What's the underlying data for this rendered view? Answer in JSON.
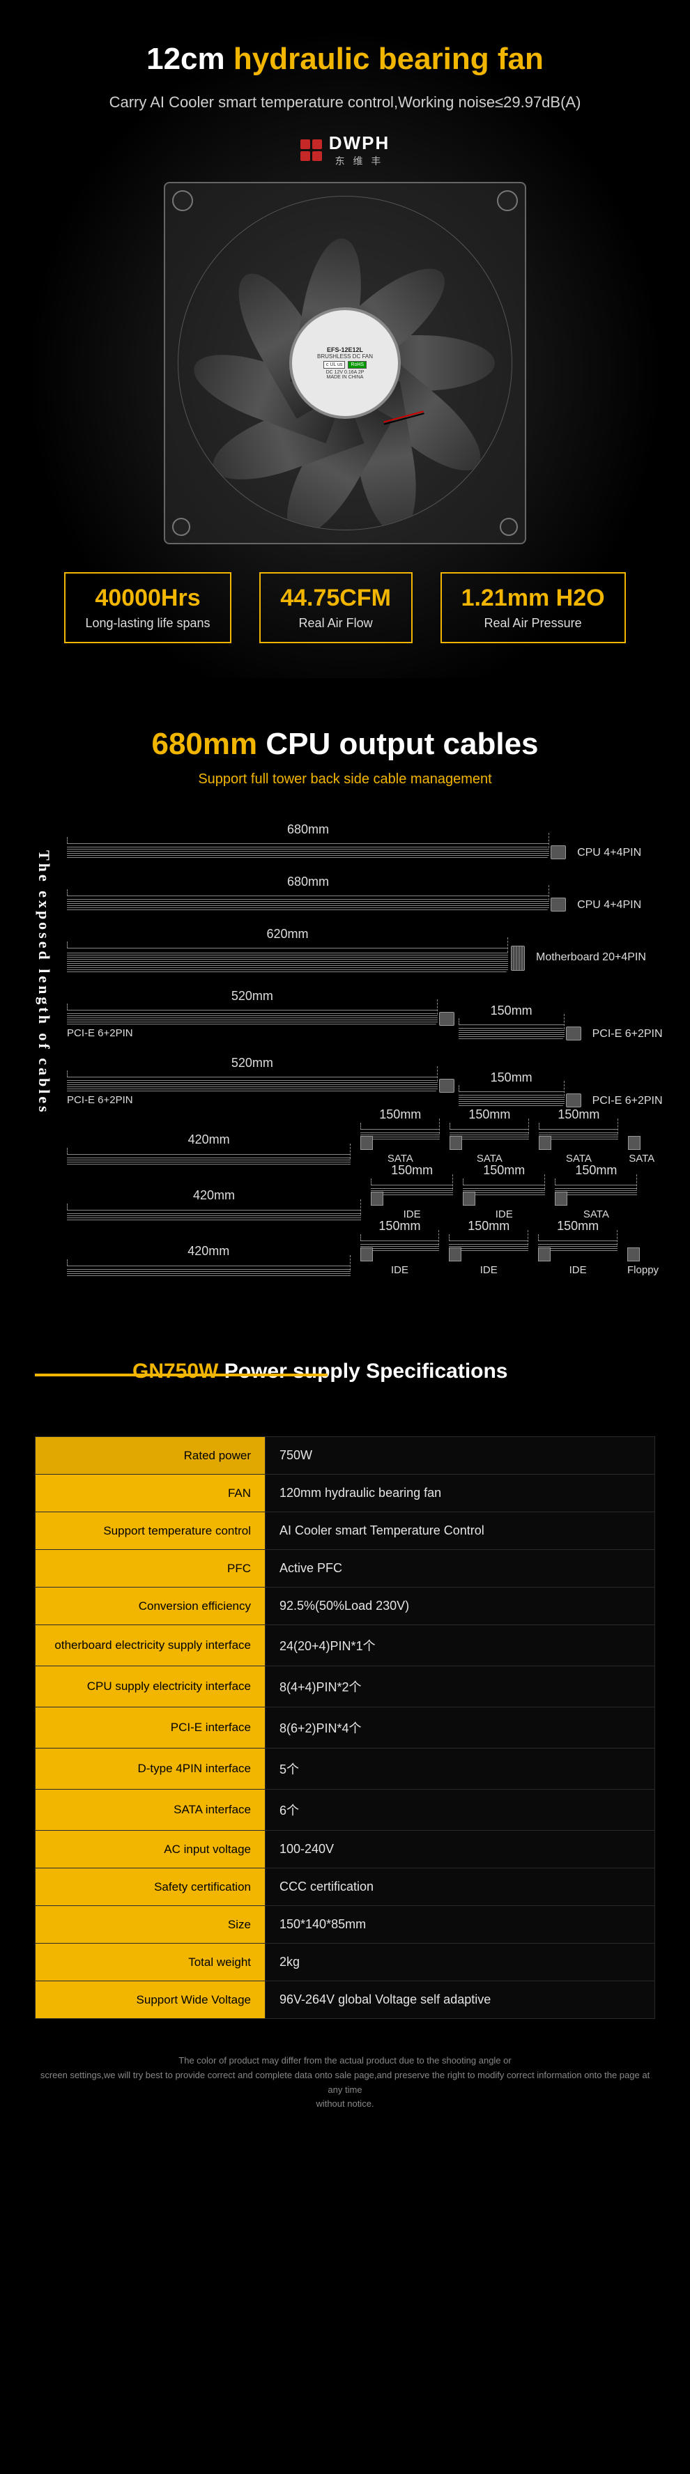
{
  "accent": "#f3b600",
  "section1": {
    "title_part1": "12cm",
    "title_part2": "hydraulic bearing fan",
    "subtitle": "Carry AI Cooler smart temperature control,Working noise≤29.97dB(A)",
    "logo_text": "DWPH",
    "logo_cn": "东 维 丰",
    "hub_model": "EFS-12E12L",
    "hub_type": "BRUSHLESS DC FAN",
    "hub_cert1": "c UL us",
    "hub_cert2": "RoHS",
    "hub_spec": "DC 12V  0.16A 2P",
    "hub_made": "MADE IN CHINA",
    "stats": [
      {
        "value": "40000Hrs",
        "label": "Long-lasting life spans"
      },
      {
        "value": "44.75CFM",
        "label": "Real Air Flow"
      },
      {
        "value": "1.21mm H2O",
        "label": "Real Air Pressure"
      }
    ]
  },
  "section2": {
    "title_part1": "680mm",
    "title_part2": "CPU output cables",
    "subtitle": "Support full tower back side cable management",
    "vertical_label": "The exposed length of cables",
    "simple_cables": [
      {
        "length": "680mm",
        "width_pct": 82,
        "conn": "CPU 4+4PIN",
        "plug": "std",
        "wire_h": 16
      },
      {
        "length": "680mm",
        "width_pct": 82,
        "conn": "CPU 4+4PIN",
        "plug": "std",
        "wire_h": 16
      },
      {
        "length": "620mm",
        "width_pct": 75,
        "conn": "Motherboard 20+4PIN",
        "plug": "lg",
        "wire_h": 30
      }
    ],
    "dual_cables": [
      {
        "main_len": "520mm",
        "main_pct": 63,
        "main_lbl": "PCI-E 6+2PIN",
        "tail_len": "150mm",
        "tail_pct": 18,
        "tail_lbl": "PCI-E 6+2PIN"
      },
      {
        "main_len": "520mm",
        "main_pct": 63,
        "main_lbl": "PCI-E 6+2PIN",
        "tail_len": "150mm",
        "tail_pct": 18,
        "tail_lbl": "PCI-E 6+2PIN"
      }
    ],
    "chain_cables": [
      {
        "main_len": "420mm",
        "main_pct": 50,
        "segs": [
          {
            "len": "150mm",
            "lbl": "SATA"
          },
          {
            "len": "150mm",
            "lbl": "SATA"
          },
          {
            "len": "150mm",
            "lbl": "SATA"
          }
        ],
        "end_lbl": "SATA"
      },
      {
        "main_len": "420mm",
        "main_pct": 50,
        "segs": [
          {
            "len": "150mm",
            "lbl": "IDE"
          },
          {
            "len": "150mm",
            "lbl": "IDE"
          },
          {
            "len": "150mm",
            "lbl": "SATA"
          }
        ],
        "end_lbl": ""
      },
      {
        "main_len": "420mm",
        "main_pct": 50,
        "segs": [
          {
            "len": "150mm",
            "lbl": "IDE"
          },
          {
            "len": "150mm",
            "lbl": "IDE"
          },
          {
            "len": "150mm",
            "lbl": "IDE"
          }
        ],
        "end_lbl": "Floppy"
      }
    ]
  },
  "section3": {
    "head_y": "GN750W",
    "head_w": " Power supply Specifications",
    "rows": [
      [
        "Rated power",
        "750W"
      ],
      [
        "FAN",
        "120mm hydraulic bearing fan"
      ],
      [
        "Support temperature control",
        "AI Cooler smart Temperature Control"
      ],
      [
        "PFC",
        "Active PFC"
      ],
      [
        "Conversion efficiency",
        "92.5%(50%Load 230V)"
      ],
      [
        "otherboard electricity supply interface",
        "24(20+4)PIN*1个"
      ],
      [
        "CPU supply electricity interface",
        "8(4+4)PIN*2个"
      ],
      [
        "PCI-E interface",
        "8(6+2)PIN*4个"
      ],
      [
        "D-type 4PIN interface",
        "5个"
      ],
      [
        "SATA interface",
        "6个"
      ],
      [
        "AC input voltage",
        "100-240V"
      ],
      [
        "Safety certification",
        "CCC certification"
      ],
      [
        "Size",
        "150*140*85mm"
      ],
      [
        "Total weight",
        "2kg"
      ],
      [
        "Support Wide Voltage",
        "96V-264V global Voltage self adaptive"
      ]
    ],
    "disclaimer_l1": "The color of product may differ from the actual product due to the shooting angle or",
    "disclaimer_l2": "screen settings,we will try best to provide correct and complete data onto sale page,and preserve the right to modify correct information onto the page at any time",
    "disclaimer_l3": "without notice."
  }
}
